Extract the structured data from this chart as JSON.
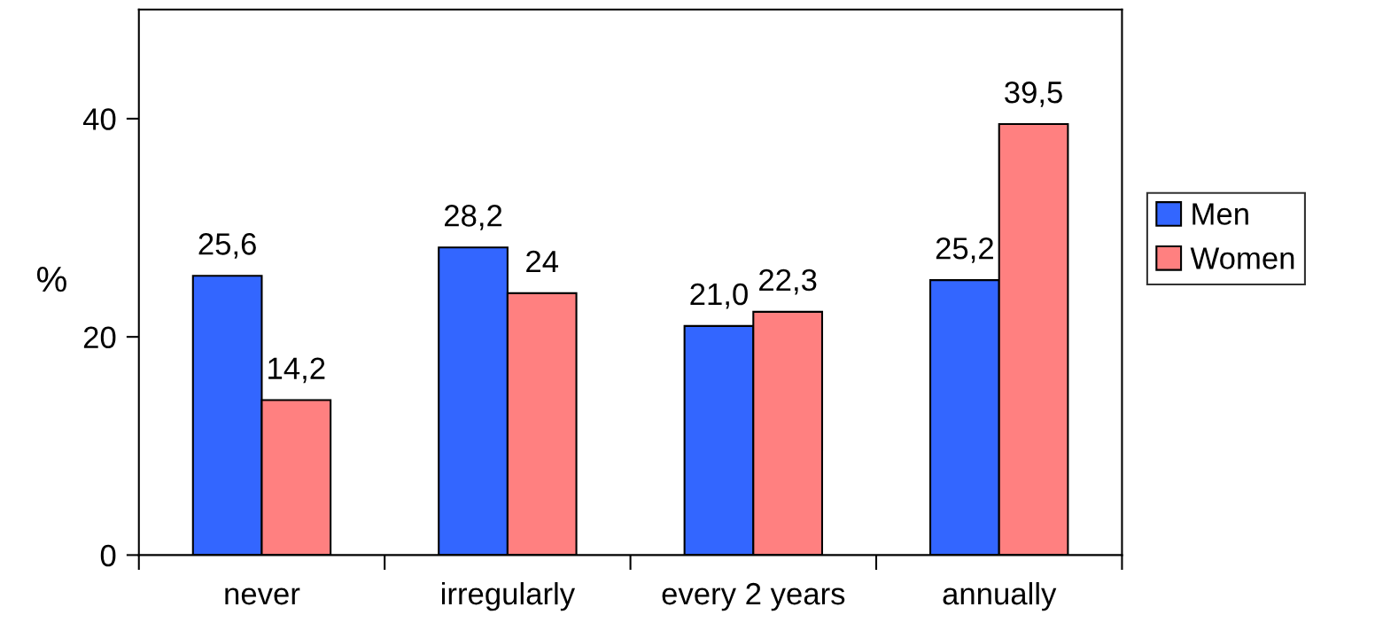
{
  "chart_data": {
    "type": "bar",
    "ylabel": "%",
    "categories": [
      "never",
      "irregularly",
      "every 2 years",
      "annually"
    ],
    "series": [
      {
        "name": "Men",
        "color": "#3366ff",
        "values": [
          25.6,
          28.2,
          21.0,
          25.2
        ],
        "value_labels": [
          "25,6",
          "28,2",
          "21,0",
          "25,2"
        ]
      },
      {
        "name": "Women",
        "color": "#ff8080",
        "values": [
          14.2,
          24,
          22.3,
          39.5
        ],
        "value_labels": [
          "14,2",
          "24",
          "22,3",
          "39,5"
        ]
      }
    ],
    "ylim": [
      0,
      50
    ],
    "yticks": [
      0,
      20,
      40
    ],
    "grid": false,
    "legend": "right"
  }
}
